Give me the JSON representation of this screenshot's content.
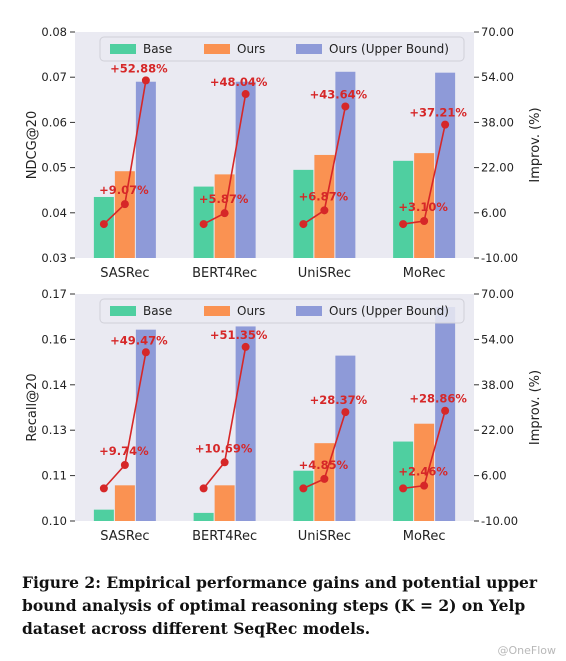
{
  "figure": {
    "caption": "Figure 2: Empirical performance gains and potential upper bound analysis of optimal reasoning steps (K = 2) on Yelp dataset across different SeqRec models.",
    "watermark": "@OneFlow"
  },
  "colors": {
    "base": "#4fcfa0",
    "ours": "#fa9252",
    "upper": "#8e9ad8",
    "improv_line": "#d62728",
    "improv_text": "#d62728",
    "panel_bg": "#eaeaf2"
  },
  "chart_data": [
    {
      "type": "bar",
      "categories": [
        "SASRec",
        "BERT4Rec",
        "UniSRec",
        "MoRec"
      ],
      "series": [
        {
          "name": "Base",
          "values": [
            0.0435,
            0.0458,
            0.0495,
            0.0515
          ]
        },
        {
          "name": "Ours",
          "values": [
            0.0492,
            0.0485,
            0.0528,
            0.0532
          ]
        },
        {
          "name": "Ours (Upper Bound)",
          "values": [
            0.069,
            0.069,
            0.0712,
            0.071
          ]
        }
      ],
      "improvement": {
        "base_percent": [
          2.0,
          2.0,
          2.0,
          2.0
        ],
        "ours_percent": [
          9.07,
          5.87,
          6.87,
          3.1
        ],
        "upper_percent": [
          52.88,
          48.04,
          43.64,
          37.21
        ],
        "labels": [
          "+9.07%",
          "+5.87%",
          "+6.87%",
          "+3.10%",
          "+52.88%",
          "+48.04%",
          "+43.64%",
          "+37.21%"
        ]
      },
      "ylabel": "NDCG@20",
      "y2label": "Improv. (%)",
      "ylim": [
        0.03,
        0.08
      ],
      "yticks": [
        "0.03",
        "0.04",
        "0.05",
        "0.06",
        "0.07",
        "0.08"
      ],
      "y2lim": [
        -10,
        70
      ],
      "y2ticks": [
        "-10.00",
        "6.00",
        "22.00",
        "38.00",
        "54.00",
        "70.00"
      ],
      "legend": "top-center",
      "grid": false
    },
    {
      "type": "bar",
      "categories": [
        "SASRec",
        "BERT4Rec",
        "UniSRec",
        "MoRec"
      ],
      "series": [
        {
          "name": "Base",
          "values": [
            0.1035,
            0.1025,
            0.1155,
            0.1245
          ]
        },
        {
          "name": "Ours",
          "values": [
            0.111,
            0.111,
            0.124,
            0.13
          ]
        },
        {
          "name": "Ours (Upper Bound)",
          "values": [
            0.159,
            0.16,
            0.151,
            0.166
          ]
        }
      ],
      "improvement": {
        "base_percent": [
          1.5,
          1.5,
          1.5,
          1.5
        ],
        "ours_percent": [
          9.74,
          10.69,
          4.85,
          2.46
        ],
        "upper_percent": [
          49.47,
          51.35,
          28.37,
          28.86
        ],
        "labels": [
          "+9.74%",
          "+10.69%",
          "+4.85%",
          "+2.46%",
          "+49.47%",
          "+51.35%",
          "+28.37%",
          "+28.86%"
        ]
      },
      "ylabel": "Recall@20",
      "y2label": "Improv. (%)",
      "ylim": [
        0.1,
        0.17
      ],
      "yticks": [
        "0.10",
        "0.11",
        "0.13",
        "0.14",
        "0.16",
        "0.17"
      ],
      "y2lim": [
        -10,
        70
      ],
      "y2ticks": [
        "-10.00",
        "6.00",
        "22.00",
        "38.00",
        "54.00",
        "70.00"
      ],
      "legend": "top-center",
      "grid": false
    }
  ]
}
